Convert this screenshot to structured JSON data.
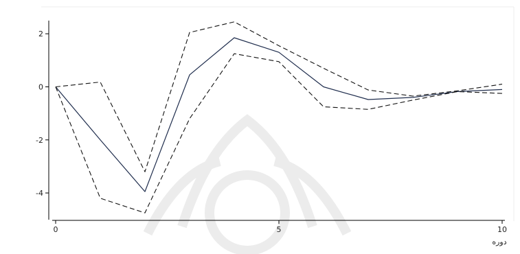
{
  "chart_data": {
    "type": "line",
    "xlabel": "دوره",
    "ylabel": "",
    "title": "",
    "xlim": [
      0,
      10
    ],
    "ylim": [
      -4.8,
      2.6
    ],
    "x_ticks": [
      0,
      5,
      10
    ],
    "y_ticks": [
      -4,
      -2,
      0,
      2
    ],
    "grid": false,
    "x": [
      0,
      1,
      2,
      3,
      4,
      5,
      6,
      7,
      8,
      9,
      10
    ],
    "series": [
      {
        "style": "solid",
        "color": "#1f2d4d",
        "values": [
          0,
          -2.0,
          -3.95,
          0.45,
          1.85,
          1.3,
          0.0,
          -0.48,
          -0.4,
          -0.18,
          -0.1
        ]
      },
      {
        "style": "dashed",
        "color": "#111111",
        "values": [
          0,
          0.18,
          -3.2,
          2.05,
          2.45,
          1.55,
          0.7,
          -0.12,
          -0.35,
          -0.15,
          0.1
        ]
      },
      {
        "style": "dashed",
        "color": "#111111",
        "values": [
          0,
          -4.2,
          -4.75,
          -1.2,
          1.25,
          0.95,
          -0.75,
          -0.85,
          -0.5,
          -0.18,
          -0.25
        ]
      }
    ]
  }
}
